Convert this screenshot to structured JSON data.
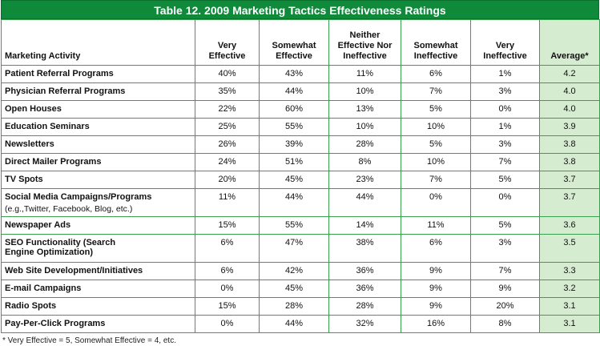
{
  "title": "Table 12. 2009 Marketing Tactics Effectiveness Ratings",
  "columns": {
    "activity": "Marketing Activity",
    "very_eff_1": "Very",
    "very_eff_2": "Effective",
    "some_eff_1": "Somewhat",
    "some_eff_2": "Effective",
    "neither_1": "Neither",
    "neither_2": "Effective Nor",
    "neither_3": "Ineffective",
    "some_ineff_1": "Somewhat",
    "some_ineff_2": "Ineffective",
    "very_ineff_1": "Very",
    "very_ineff_2": "Ineffective",
    "average": "Average*"
  },
  "rows": [
    {
      "activity": "Patient Referral Programs",
      "v": [
        "40%",
        "43%",
        "11%",
        "6%",
        "1%",
        "4.2"
      ]
    },
    {
      "activity": "Physician Referral Programs",
      "v": [
        "35%",
        "44%",
        "10%",
        "7%",
        "3%",
        "4.0"
      ]
    },
    {
      "activity": "Open Houses",
      "v": [
        "22%",
        "60%",
        "13%",
        "5%",
        "0%",
        "4.0"
      ]
    },
    {
      "activity": "Education Seminars",
      "v": [
        "25%",
        "55%",
        "10%",
        "10%",
        "1%",
        "3.9"
      ]
    },
    {
      "activity": "Newsletters",
      "v": [
        "26%",
        "39%",
        "28%",
        "5%",
        "3%",
        "3.8"
      ]
    },
    {
      "activity": "Direct Mailer Programs",
      "v": [
        "24%",
        "51%",
        "8%",
        "10%",
        "7%",
        "3.8"
      ]
    },
    {
      "activity": "TV Spots",
      "v": [
        "20%",
        "45%",
        "23%",
        "7%",
        "5%",
        "3.7"
      ]
    },
    {
      "activity": "Social Media Campaigns/Programs",
      "sub": "(e.g.,Twitter, Facebook, Blog, etc.)",
      "v": [
        "11%",
        "44%",
        "44%",
        "0%",
        "0%",
        "3.7"
      ]
    },
    {
      "activity": "Newspaper Ads",
      "v": [
        "15%",
        "55%",
        "14%",
        "11%",
        "5%",
        "3.6"
      ]
    },
    {
      "activity": "SEO Functionality (Search",
      "activity2": "Engine Optimization)",
      "v": [
        "6%",
        "47%",
        "38%",
        "6%",
        "3%",
        "3.5"
      ]
    },
    {
      "activity": "Web Site Development/Initiatives",
      "v": [
        "6%",
        "42%",
        "36%",
        "9%",
        "7%",
        "3.3"
      ]
    },
    {
      "activity": "E-mail Campaigns",
      "v": [
        "0%",
        "45%",
        "36%",
        "9%",
        "9%",
        "3.2"
      ]
    },
    {
      "activity": "Radio Spots",
      "v": [
        "15%",
        "28%",
        "28%",
        "9%",
        "20%",
        "3.1"
      ]
    },
    {
      "activity": "Pay-Per-Click Programs",
      "v": [
        "0%",
        "44%",
        "32%",
        "16%",
        "8%",
        "3.1"
      ]
    }
  ],
  "footnote": "* Very Effective = 5, Somewhat Effective = 4, etc.",
  "colors": {
    "header_green": "#0f8a3a",
    "avg_fill": "#d6ecd0",
    "rule_green": "#3aa04f"
  }
}
